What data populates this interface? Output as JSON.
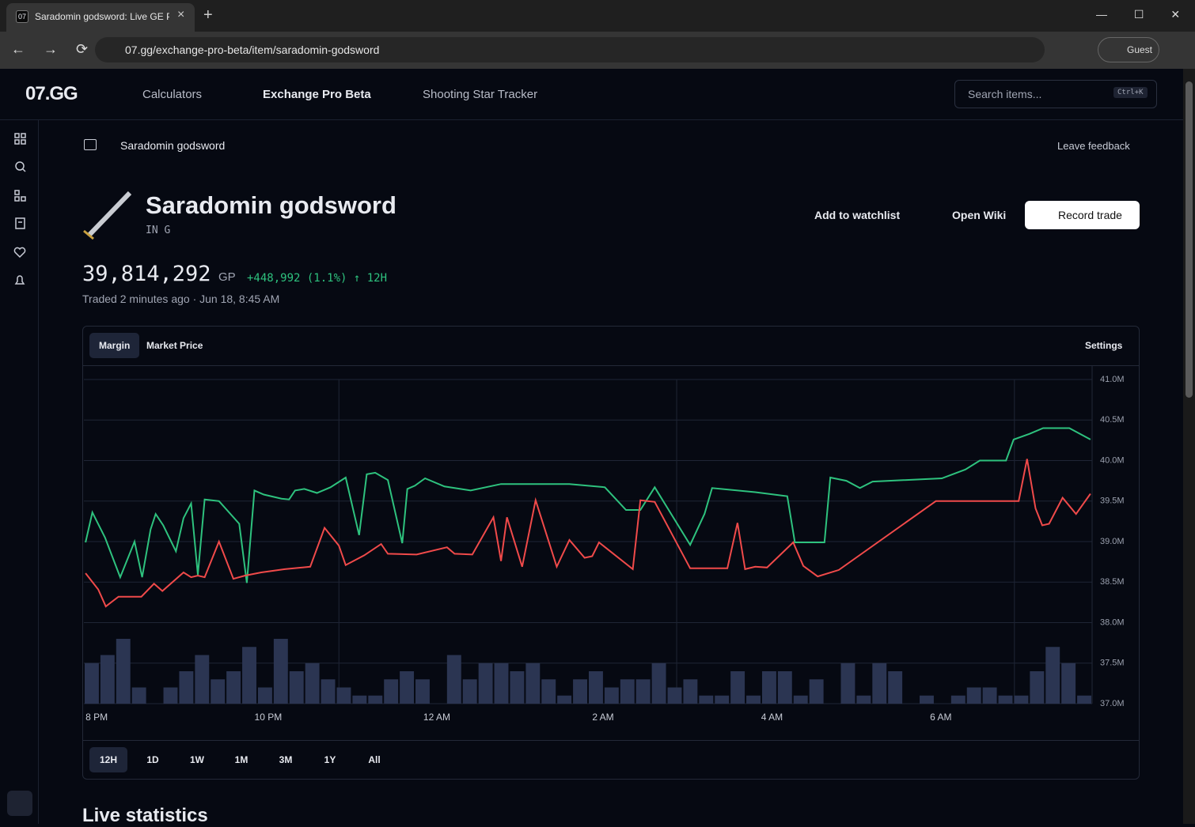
{
  "browser": {
    "tab_title": "Saradomin godsword: Live GE P",
    "tab_icon": "07",
    "url": "07.gg/exchange-pro-beta/item/saradomin-godsword",
    "profile": "Guest"
  },
  "header": {
    "logo": "07.GG",
    "nav": [
      "Calculators",
      "Exchange Pro Beta",
      "Shooting Star Tracker"
    ],
    "search_placeholder": "Search items...",
    "search_shortcut": "Ctrl+K"
  },
  "breadcrumb": "Saradomin godsword",
  "feedback": "Leave feedback",
  "item": {
    "name": "Saradomin godsword",
    "tag": "IN G",
    "actions": [
      "Add to watchlist",
      "Open Wiki",
      "Record trade"
    ],
    "price": "39,814,292",
    "unit": "GP",
    "change": "+448,992 (1.1%) ↑ 12H",
    "traded": "Traded 2 minutes ago · Jun 18, 8:45 AM"
  },
  "chart_tabs": [
    "Margin",
    "Market Price"
  ],
  "settings": "Settings",
  "ranges": [
    "12H",
    "1D",
    "1W",
    "1M",
    "3M",
    "1Y",
    "All"
  ],
  "section_title": "Live statistics",
  "chart_data": {
    "type": "line",
    "xlim": [
      19.98,
      31.92
    ],
    "xticks": [
      {
        "value": 20,
        "label": "8 PM"
      },
      {
        "value": 22,
        "label": "10 PM"
      },
      {
        "value": 24,
        "label": "12 AM"
      },
      {
        "value": 26,
        "label": "2 AM"
      },
      {
        "value": 28,
        "label": "4 AM"
      },
      {
        "value": 30,
        "label": "6 AM"
      }
    ],
    "xgrid": [
      23,
      27,
      31
    ],
    "ylim": [
      37000000,
      41000000
    ],
    "yticks": [
      {
        "value": 37000000,
        "label": "37.0M"
      },
      {
        "value": 37500000,
        "label": "37.5M"
      },
      {
        "value": 38000000,
        "label": "38.0M"
      },
      {
        "value": 38500000,
        "label": "38.5M"
      },
      {
        "value": 39000000,
        "label": "39.0M"
      },
      {
        "value": 39500000,
        "label": "39.5M"
      },
      {
        "value": 40000000,
        "label": "40.0M"
      },
      {
        "value": 40500000,
        "label": "40.5M"
      },
      {
        "value": 41000000,
        "label": "41.0M"
      }
    ],
    "grid": true,
    "series": [
      {
        "color": "#2ec27e",
        "x": [
          20.0,
          20.08,
          20.23,
          20.41,
          20.58,
          20.67,
          20.77,
          20.83,
          20.92,
          21.07,
          21.16,
          21.25,
          21.33,
          21.41,
          21.58,
          21.82,
          21.91,
          22.0,
          22.11,
          22.32,
          22.41,
          22.48,
          22.59,
          22.74,
          22.9,
          23.08,
          23.24,
          23.33,
          23.43,
          23.58,
          23.75,
          23.81,
          23.9,
          24.02,
          24.25,
          24.56,
          24.92,
          25.73,
          26.15,
          26.4,
          26.57,
          26.74,
          27.16,
          27.33,
          27.42,
          27.93,
          28.31,
          28.4,
          28.75,
          28.82,
          29.01,
          29.17,
          29.32,
          30.14,
          30.42,
          30.59,
          30.9,
          30.99,
          31.18,
          31.34,
          31.65,
          31.9
        ],
        "values": [
          38990000,
          39360000,
          39050000,
          38560000,
          39000000,
          38560000,
          39150000,
          39340000,
          39200000,
          38880000,
          39290000,
          39470000,
          38590000,
          39520000,
          39500000,
          39220000,
          38490000,
          39630000,
          39580000,
          39530000,
          39520000,
          39630000,
          39650000,
          39600000,
          39670000,
          39790000,
          39080000,
          39830000,
          39850000,
          39760000,
          38980000,
          39650000,
          39690000,
          39780000,
          39680000,
          39630000,
          39710000,
          39710000,
          39670000,
          39390000,
          39390000,
          39670000,
          38960000,
          39340000,
          39660000,
          39610000,
          39560000,
          38990000,
          38990000,
          39790000,
          39750000,
          39660000,
          39740000,
          39780000,
          39890000,
          40000000,
          40000000,
          40260000,
          40330000,
          40400000,
          40400000,
          40260000
        ]
      },
      {
        "color": "#f04a4a",
        "x": [
          20.0,
          20.15,
          20.24,
          20.39,
          20.66,
          20.81,
          20.91,
          21.16,
          21.25,
          21.33,
          21.41,
          21.58,
          21.75,
          21.89,
          22.08,
          22.36,
          22.66,
          22.83,
          23.0,
          23.08,
          23.3,
          23.5,
          23.58,
          23.92,
          24.28,
          24.37,
          24.58,
          24.83,
          24.92,
          24.99,
          25.17,
          25.33,
          25.58,
          25.73,
          25.91,
          26.0,
          26.08,
          26.48,
          26.57,
          26.74,
          27.16,
          27.6,
          27.72,
          27.81,
          27.93,
          28.07,
          28.38,
          28.5,
          28.67,
          28.92,
          30.07,
          31.05,
          31.15,
          31.25,
          31.33,
          31.41,
          31.57,
          31.73,
          31.9
        ],
        "values": [
          38610000,
          38410000,
          38200000,
          38320000,
          38320000,
          38480000,
          38390000,
          38620000,
          38560000,
          38580000,
          38560000,
          39000000,
          38540000,
          38580000,
          38620000,
          38660000,
          38690000,
          39170000,
          38950000,
          38710000,
          38830000,
          38970000,
          38850000,
          38840000,
          38930000,
          38850000,
          38840000,
          39300000,
          38760000,
          39300000,
          38690000,
          39510000,
          38690000,
          39020000,
          38800000,
          38820000,
          38990000,
          38660000,
          39510000,
          39490000,
          38670000,
          38670000,
          39230000,
          38660000,
          38690000,
          38680000,
          38990000,
          38700000,
          38570000,
          38650000,
          39500000,
          39500000,
          40020000,
          39410000,
          39200000,
          39220000,
          39540000,
          39340000,
          39590000
        ]
      }
    ],
    "volume_color": "#2b3552",
    "volume": [
      5,
      6,
      8,
      2,
      0,
      2,
      4,
      6,
      3,
      4,
      7,
      2,
      8,
      4,
      5,
      3,
      2,
      1,
      1,
      3,
      4,
      3,
      0,
      6,
      3,
      5,
      5,
      4,
      5,
      3,
      1,
      3,
      4,
      2,
      3,
      3,
      5,
      2,
      3,
      1,
      1,
      4,
      1,
      4,
      4,
      1,
      3,
      0,
      5,
      1,
      5,
      4,
      0,
      1,
      0,
      1,
      2,
      2,
      1,
      1,
      4,
      7,
      5,
      1
    ]
  }
}
